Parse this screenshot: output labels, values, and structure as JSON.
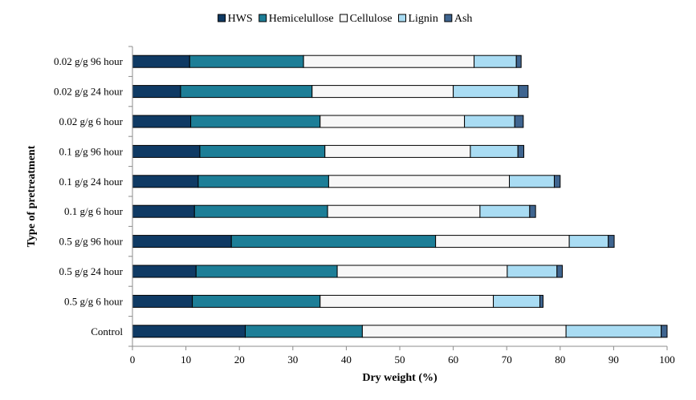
{
  "chart_data": {
    "type": "bar",
    "orientation": "horizontal",
    "stacked": true,
    "title": "",
    "xlabel": "Dry weight (%)",
    "ylabel": "Type of pretreatment",
    "xlim": [
      0,
      100
    ],
    "xticks": [
      0,
      10,
      20,
      30,
      40,
      50,
      60,
      70,
      80,
      90,
      100
    ],
    "grid": false,
    "legend_position": "top",
    "categories": [
      "0.02 g/g 96 hour",
      "0.02 g/g 24 hour",
      "0.02 g/g 6 hour",
      "0.1 g/g 96 hour",
      "0.1 g/g 24 hour",
      "0.1 g/g 6 hour",
      "0.5 g/g 96 hour",
      "0.5 g/g 24 hour",
      "0.5 g/g 6 hour",
      "Control"
    ],
    "series": [
      {
        "name": "HWS",
        "color": "#0f3a64",
        "values": [
          10.7,
          9.0,
          10.9,
          12.6,
          12.3,
          11.6,
          18.5,
          11.9,
          11.2,
          21.1
        ]
      },
      {
        "name": "Hemicelullose",
        "color": "#1d7e97",
        "values": [
          21.3,
          24.6,
          24.2,
          23.4,
          24.4,
          24.9,
          38.2,
          26.4,
          23.9,
          21.9
        ]
      },
      {
        "name": "Cellulose",
        "color": "#f7f7f7",
        "values": [
          31.9,
          26.4,
          27.0,
          27.2,
          33.8,
          28.5,
          25.0,
          31.8,
          32.4,
          38.1
        ]
      },
      {
        "name": "Lignin",
        "color": "#a9dcf3",
        "values": [
          7.9,
          12.2,
          9.4,
          8.9,
          8.4,
          9.3,
          7.3,
          9.3,
          8.7,
          17.8
        ]
      },
      {
        "name": "Ash",
        "color": "#3f6590",
        "values": [
          0.9,
          1.8,
          1.6,
          1.1,
          1.1,
          1.1,
          1.1,
          1.0,
          0.6,
          1.1
        ]
      }
    ]
  }
}
